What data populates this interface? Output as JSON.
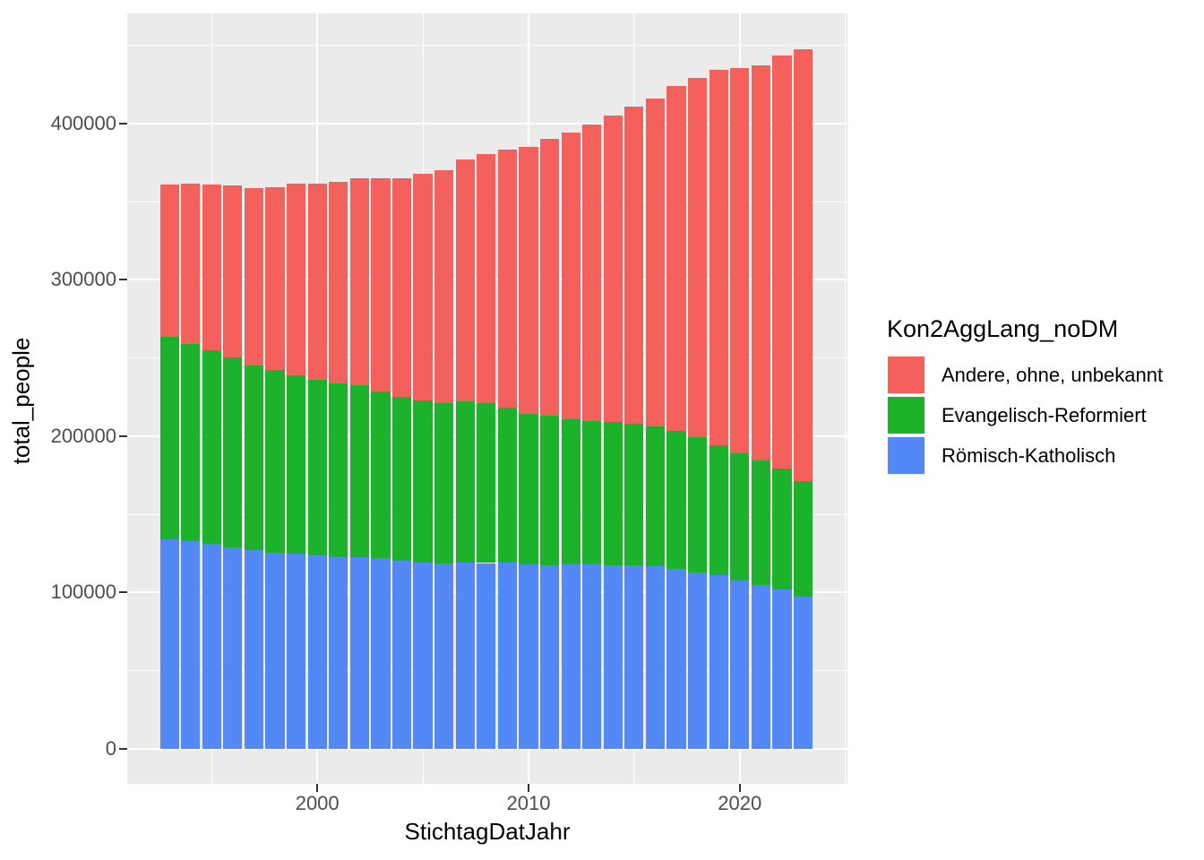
{
  "chart_data": {
    "type": "bar",
    "stacked": true,
    "xlabel": "StichtagDatJahr",
    "ylabel": "total_people",
    "legend_title": "Kon2AggLang_noDM",
    "legend_position": "right",
    "grid": true,
    "panel_background": "#EBEBEB",
    "x": [
      1993,
      1994,
      1995,
      1996,
      1997,
      1998,
      1999,
      2000,
      2001,
      2002,
      2003,
      2004,
      2005,
      2006,
      2007,
      2008,
      2009,
      2010,
      2011,
      2012,
      2013,
      2014,
      2015,
      2016,
      2017,
      2018,
      2019,
      2020,
      2021,
      2022,
      2023
    ],
    "series": [
      {
        "name": "Römisch-Katholisch",
        "color": "#5588F7",
        "values": [
          134000,
          132800,
          131000,
          129100,
          127100,
          125400,
          124700,
          123400,
          122500,
          122300,
          121800,
          120200,
          119200,
          118700,
          118900,
          118800,
          119200,
          118100,
          117600,
          117700,
          117700,
          117600,
          117100,
          116600,
          115300,
          112800,
          110900,
          107600,
          104800,
          101900,
          97500
        ]
      },
      {
        "name": "Evangelisch-Reformiert",
        "color": "#1CB22C",
        "values": [
          129700,
          126400,
          124000,
          121500,
          118100,
          117000,
          114200,
          112900,
          111300,
          110200,
          106500,
          105000,
          103700,
          102700,
          103300,
          102200,
          99000,
          96200,
          95300,
          93400,
          91900,
          91400,
          90600,
          89600,
          88200,
          86300,
          83100,
          81400,
          79600,
          77600,
          74000
        ]
      },
      {
        "name": "Andere, ohne, unbekannt",
        "color": "#F4615D",
        "values": [
          97200,
          102300,
          105800,
          109600,
          113400,
          117000,
          122600,
          125500,
          128800,
          132400,
          136600,
          139700,
          144900,
          148900,
          155100,
          159500,
          165200,
          171000,
          177300,
          183300,
          189600,
          196300,
          203300,
          209800,
          220300,
          230000,
          240500,
          246800,
          252600,
          263900,
          276300
        ]
      }
    ],
    "legend_entries": [
      {
        "label": "Andere, ohne, unbekannt",
        "color": "#F4615D"
      },
      {
        "label": "Evangelisch-Reformiert",
        "color": "#1CB22C"
      },
      {
        "label": "Römisch-Katholisch",
        "color": "#5588F7"
      }
    ],
    "bar_width_years": 0.9,
    "x_range": [
      1991.0,
      2025.1
    ],
    "y_range": [
      -22500,
      470500
    ],
    "x_ticks": [
      {
        "value": 2000,
        "label": "2000"
      },
      {
        "value": 2010,
        "label": "2010"
      },
      {
        "value": 2020,
        "label": "2020"
      }
    ],
    "x_minor_breaks": [
      1995,
      2005,
      2015,
      2025
    ],
    "y_ticks": [
      {
        "value": 0,
        "label": "0"
      },
      {
        "value": 100000,
        "label": "100000"
      },
      {
        "value": 200000,
        "label": "200000"
      },
      {
        "value": 300000,
        "label": "300000"
      },
      {
        "value": 400000,
        "label": "400000"
      }
    ],
    "y_minor_breaks": [
      50000,
      150000,
      250000,
      350000,
      450000
    ]
  }
}
